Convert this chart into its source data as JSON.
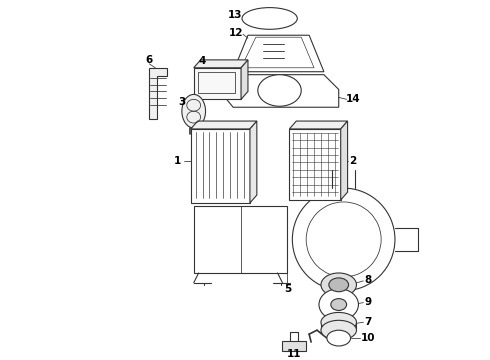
{
  "background_color": "#ffffff",
  "line_color": "#333333",
  "lw": 0.8,
  "figw": 4.9,
  "figh": 3.6,
  "dpi": 100
}
